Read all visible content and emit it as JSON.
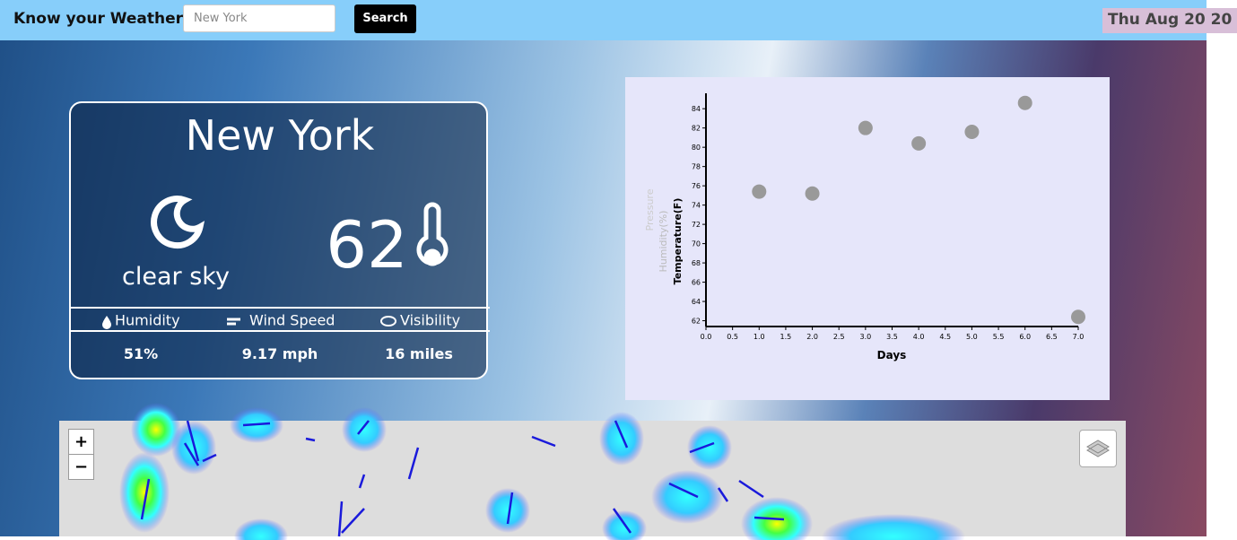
{
  "header": {
    "title": "Know your Weather!",
    "search_placeholder": "New York",
    "search_button": "Search",
    "date": "Thu Aug 20 20"
  },
  "weather": {
    "city": "New York",
    "condition": "clear sky",
    "temperature": "62",
    "stats": [
      {
        "label": "Humidity",
        "value": "51%"
      },
      {
        "label": "Wind Speed",
        "value": "9.17 mph"
      },
      {
        "label": "Visibility",
        "value": "16 miles"
      }
    ]
  },
  "chart_data": {
    "type": "scatter",
    "xlabel": "Days",
    "ylabel": "Temperature(F)",
    "ylabel_alt": [
      "Humidity(%)",
      "Pressure"
    ],
    "x": [
      1,
      2,
      3,
      4,
      5,
      6,
      7
    ],
    "values": [
      75.4,
      75.2,
      82.0,
      80.4,
      81.6,
      84.6,
      62.4
    ],
    "color": "#999999",
    "xlim": [
      0,
      7
    ],
    "ylim": [
      61.4,
      85.6
    ],
    "xticks": [
      {
        "value": 0,
        "label": "0.0"
      },
      {
        "value": 0.5,
        "label": "0.5"
      },
      {
        "value": 1,
        "label": "1.0"
      },
      {
        "value": 1.5,
        "label": "1.5"
      },
      {
        "value": 2,
        "label": "2.0"
      },
      {
        "value": 2.5,
        "label": "2.5"
      },
      {
        "value": 3,
        "label": "3.0"
      },
      {
        "value": 3.5,
        "label": "3.5"
      },
      {
        "value": 4,
        "label": "4.0"
      },
      {
        "value": 4.5,
        "label": "4.5"
      },
      {
        "value": 5,
        "label": "5.0"
      },
      {
        "value": 5.5,
        "label": "5.5"
      },
      {
        "value": 6,
        "label": "6.0"
      },
      {
        "value": 6.5,
        "label": "6.5"
      },
      {
        "value": 7,
        "label": "7.0"
      }
    ],
    "yticks": [
      62,
      64,
      66,
      68,
      70,
      72,
      74,
      76,
      78,
      80,
      82,
      84
    ]
  },
  "map": {
    "zoom_in": "+",
    "zoom_out": "−"
  }
}
